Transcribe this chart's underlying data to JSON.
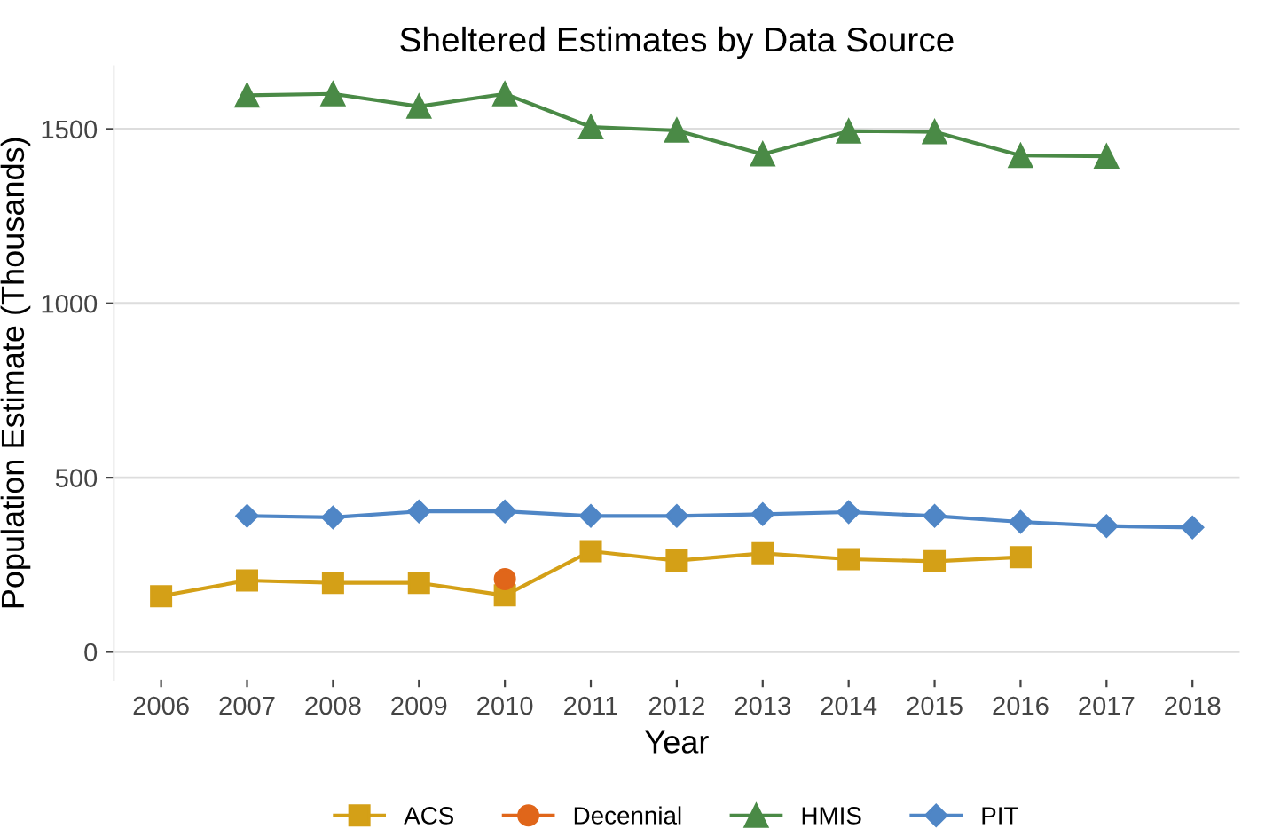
{
  "chart_data": {
    "type": "line",
    "title": "Sheltered Estimates by Data Source",
    "xlabel": "Year",
    "ylabel": "Population Estimate (Thousands)",
    "xlim": [
      2005.45,
      2018.55
    ],
    "xticks": [
      2006,
      2007,
      2008,
      2009,
      2010,
      2011,
      2012,
      2013,
      2014,
      2015,
      2016,
      2017,
      2018
    ],
    "ylim": [
      -80,
      1680
    ],
    "yticks": [
      0,
      500,
      1000,
      1500
    ],
    "grid": "y",
    "legend": "bottom",
    "series": [
      {
        "name": "ACS",
        "color": "#d4a017",
        "marker": "square",
        "x": [
          2006,
          2007,
          2008,
          2009,
          2010,
          2011,
          2012,
          2013,
          2014,
          2015,
          2016
        ],
        "values": [
          160,
          205,
          198,
          198,
          162,
          289,
          262,
          283,
          266,
          260,
          272
        ]
      },
      {
        "name": "Decennial",
        "color": "#e0661a",
        "marker": "circle",
        "x": [
          2010
        ],
        "values": [
          209
        ]
      },
      {
        "name": "HMIS",
        "color": "#4a8a46",
        "marker": "triangle",
        "x": [
          2007,
          2008,
          2009,
          2010,
          2011,
          2012,
          2013,
          2014,
          2015,
          2016,
          2017
        ],
        "values": [
          1597,
          1601,
          1565,
          1601,
          1506,
          1496,
          1428,
          1494,
          1492,
          1424,
          1422
        ]
      },
      {
        "name": "PIT",
        "color": "#4f86c6",
        "marker": "diamond",
        "x": [
          2007,
          2008,
          2009,
          2010,
          2011,
          2012,
          2013,
          2014,
          2015,
          2016,
          2017,
          2018
        ],
        "values": [
          390,
          386,
          403,
          403,
          390,
          390,
          395,
          401,
          390,
          373,
          361,
          357
        ]
      }
    ]
  }
}
